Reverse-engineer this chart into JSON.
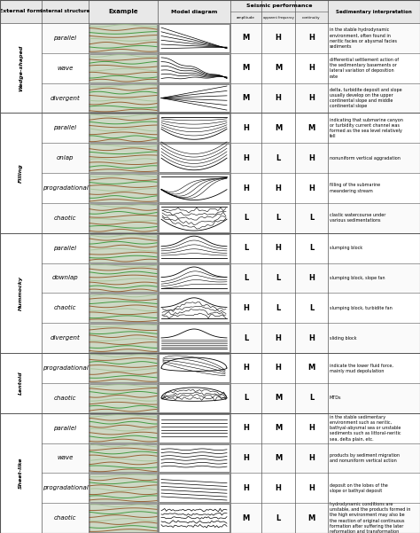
{
  "col_headers": [
    "External form",
    "Internal structure",
    "Example",
    "Model diagram",
    "amplitude",
    "apparent frequency",
    "continuity",
    "Sedimentary interpretation"
  ],
  "seismic_header": "Seismic performance",
  "groups": [
    {
      "name": "Wedge-shaped",
      "rows": [
        {
          "internal": "parallel",
          "amp": "M",
          "freq": "H",
          "cont": "H",
          "interp": "in the stable hydrodynamic\nenvironment, often found in\nneritic facies or abysmal facies\nsediments"
        },
        {
          "internal": "wave",
          "amp": "M",
          "freq": "M",
          "cont": "H",
          "interp": "differential settlement action of\nthe sedimentary basements or\nlateral variation of deposition\nrate"
        },
        {
          "internal": "divergent",
          "amp": "M",
          "freq": "H",
          "cont": "H",
          "interp": "delta, turbidite deposit and slope\nusually develop on the upper\ncontinental slope and middle\ncontinental slope"
        }
      ]
    },
    {
      "name": "Filling",
      "rows": [
        {
          "internal": "parallel",
          "amp": "H",
          "freq": "M",
          "cont": "M",
          "interp": "indicating that submarine canyon\nor turbidity current channel was\nformed as the sea level relatively\nfell"
        },
        {
          "internal": "onlap",
          "amp": "H",
          "freq": "L",
          "cont": "H",
          "interp": "nonuniform vertical aggradation"
        },
        {
          "internal": "progradational",
          "amp": "H",
          "freq": "H",
          "cont": "H",
          "interp": "filling of the submarine\nmeandering stream"
        },
        {
          "internal": "chaotic",
          "amp": "L",
          "freq": "L",
          "cont": "L",
          "interp": "clastic watercourse under\nvarious sedimentations"
        }
      ]
    },
    {
      "name": "Hummocky",
      "rows": [
        {
          "internal": "parallel",
          "amp": "L",
          "freq": "H",
          "cont": "L",
          "interp": "slumping block"
        },
        {
          "internal": "downlap",
          "amp": "L",
          "freq": "L",
          "cont": "H",
          "interp": "slumping block, slope fan"
        },
        {
          "internal": "chaotic",
          "amp": "H",
          "freq": "L",
          "cont": "L",
          "interp": "slumping block, turbidite fan"
        },
        {
          "internal": "divergent",
          "amp": "L",
          "freq": "H",
          "cont": "H",
          "interp": "sliding block"
        }
      ]
    },
    {
      "name": "Lentoid",
      "rows": [
        {
          "internal": "progradational",
          "amp": "H",
          "freq": "H",
          "cont": "M",
          "interp": "indicate the lower fluid force,\nmainly mud depolulation"
        },
        {
          "internal": "chaotic",
          "amp": "L",
          "freq": "M",
          "cont": "L",
          "interp": "MTDs"
        }
      ]
    },
    {
      "name": "Sheet-like",
      "rows": [
        {
          "internal": "parallel",
          "amp": "H",
          "freq": "M",
          "cont": "H",
          "interp": "in the stable sedimentary\nenvironment such as neritic,\nbathyal-abysmal sea or unstable\nsediments such as littoral-neritic\nsea, delta plain, etc."
        },
        {
          "internal": "wave",
          "amp": "H",
          "freq": "M",
          "cont": "H",
          "interp": "products by sediment migration\nand nonuniform vertical action"
        },
        {
          "internal": "progradational",
          "amp": "H",
          "freq": "H",
          "cont": "H",
          "interp": "deposit on the lobes of the\nslope or bathyal deposit"
        },
        {
          "internal": "chaotic",
          "amp": "M",
          "freq": "L",
          "cont": "M",
          "interp": "hydrodynamic conditions are\nunstable, and the products formed in\nthe high environment may also be\nthe reaction of original continuous\nformation after suffering the later\nreformation and transformation"
        }
      ]
    }
  ],
  "bg_color": "#ffffff",
  "header_bg": "#e8e8e8",
  "grid_color": "#555555",
  "text_color": "#000000",
  "font_size": 5.0,
  "header_font_size": 6.0
}
